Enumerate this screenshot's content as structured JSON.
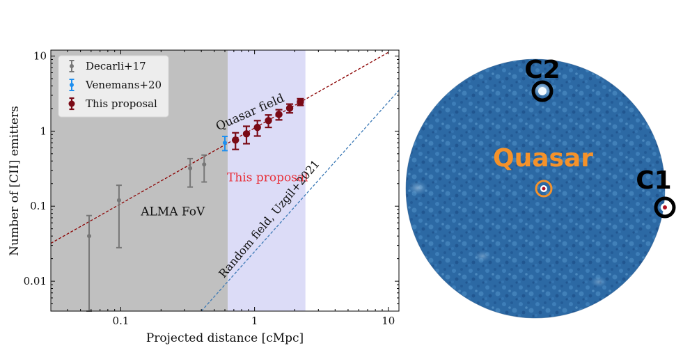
{
  "chart_data": [
    {
      "type": "scatter",
      "title": "",
      "xlabel": "Projected distance [cMpc]",
      "ylabel": "Number of [CII] emitters",
      "xscale": "log",
      "yscale": "log",
      "xlim": [
        0.03,
        12
      ],
      "ylim": [
        0.004,
        12
      ],
      "xticks": [
        {
          "value": 0.1,
          "label": "0.1"
        },
        {
          "value": 1,
          "label": "1"
        },
        {
          "value": 10,
          "label": "10"
        }
      ],
      "yticks": [
        {
          "value": 0.01,
          "label": "0.01"
        },
        {
          "value": 0.1,
          "label": "0.1"
        },
        {
          "value": 1,
          "label": "1"
        },
        {
          "value": 10,
          "label": "10"
        }
      ],
      "legend_position": "top-left",
      "regions": [
        {
          "label": "ALMA FoV",
          "x_range": [
            0.03,
            0.63
          ],
          "color": "#c0c0c0"
        },
        {
          "label": "This proposal",
          "x_range": [
            0.63,
            2.4
          ],
          "color": "#dcdcf7",
          "label_color": "#e8303a"
        }
      ],
      "lines": [
        {
          "label": "Quasar field",
          "color": "#8b0000",
          "points": [
            [
              0.03,
              0.032
            ],
            [
              10,
              11.2
            ]
          ]
        },
        {
          "label": "Random field, Uzgil+2021",
          "color": "#3a78b5",
          "points": [
            [
              0.4,
              0.004
            ],
            [
              12,
              3.5
            ]
          ]
        }
      ],
      "series": [
        {
          "name": "Decarli+17",
          "color": "#777777",
          "points": [
            {
              "x": 0.058,
              "y": 0.04,
              "ylo": 0.004,
              "yhi": 0.075
            },
            {
              "x": 0.097,
              "y": 0.12,
              "ylo": 0.028,
              "yhi": 0.19
            },
            {
              "x": 0.33,
              "y": 0.32,
              "ylo": 0.18,
              "yhi": 0.43
            },
            {
              "x": 0.42,
              "y": 0.36,
              "ylo": 0.21,
              "yhi": 0.48
            }
          ]
        },
        {
          "name": "Venemans+20",
          "color": "#1e8ff0",
          "points": [
            {
              "x": 0.6,
              "y": 0.7,
              "ylo": 0.55,
              "yhi": 0.85
            }
          ]
        },
        {
          "name": "This proposal",
          "color": "#7a0a16",
          "points": [
            {
              "x": 0.72,
              "y": 0.76,
              "ylo": 0.57,
              "yhi": 0.95
            },
            {
              "x": 0.87,
              "y": 0.92,
              "ylo": 0.68,
              "yhi": 1.16
            },
            {
              "x": 1.05,
              "y": 1.12,
              "ylo": 0.86,
              "yhi": 1.38
            },
            {
              "x": 1.27,
              "y": 1.38,
              "ylo": 1.12,
              "yhi": 1.64
            },
            {
              "x": 1.52,
              "y": 1.67,
              "ylo": 1.41,
              "yhi": 1.93
            },
            {
              "x": 1.83,
              "y": 2.02,
              "ylo": 1.75,
              "yhi": 2.29
            },
            {
              "x": 2.2,
              "y": 2.45,
              "ylo": 2.2,
              "yhi": 2.7
            }
          ]
        }
      ]
    },
    {
      "type": "image",
      "labels": {
        "quasar": "Quasar",
        "c1": "C1",
        "c2": "C2"
      },
      "colors": {
        "background": "#2c6aa6",
        "quasar_label": "#f5922a",
        "marker": "#000000",
        "source_core": "#b01020"
      }
    }
  ]
}
